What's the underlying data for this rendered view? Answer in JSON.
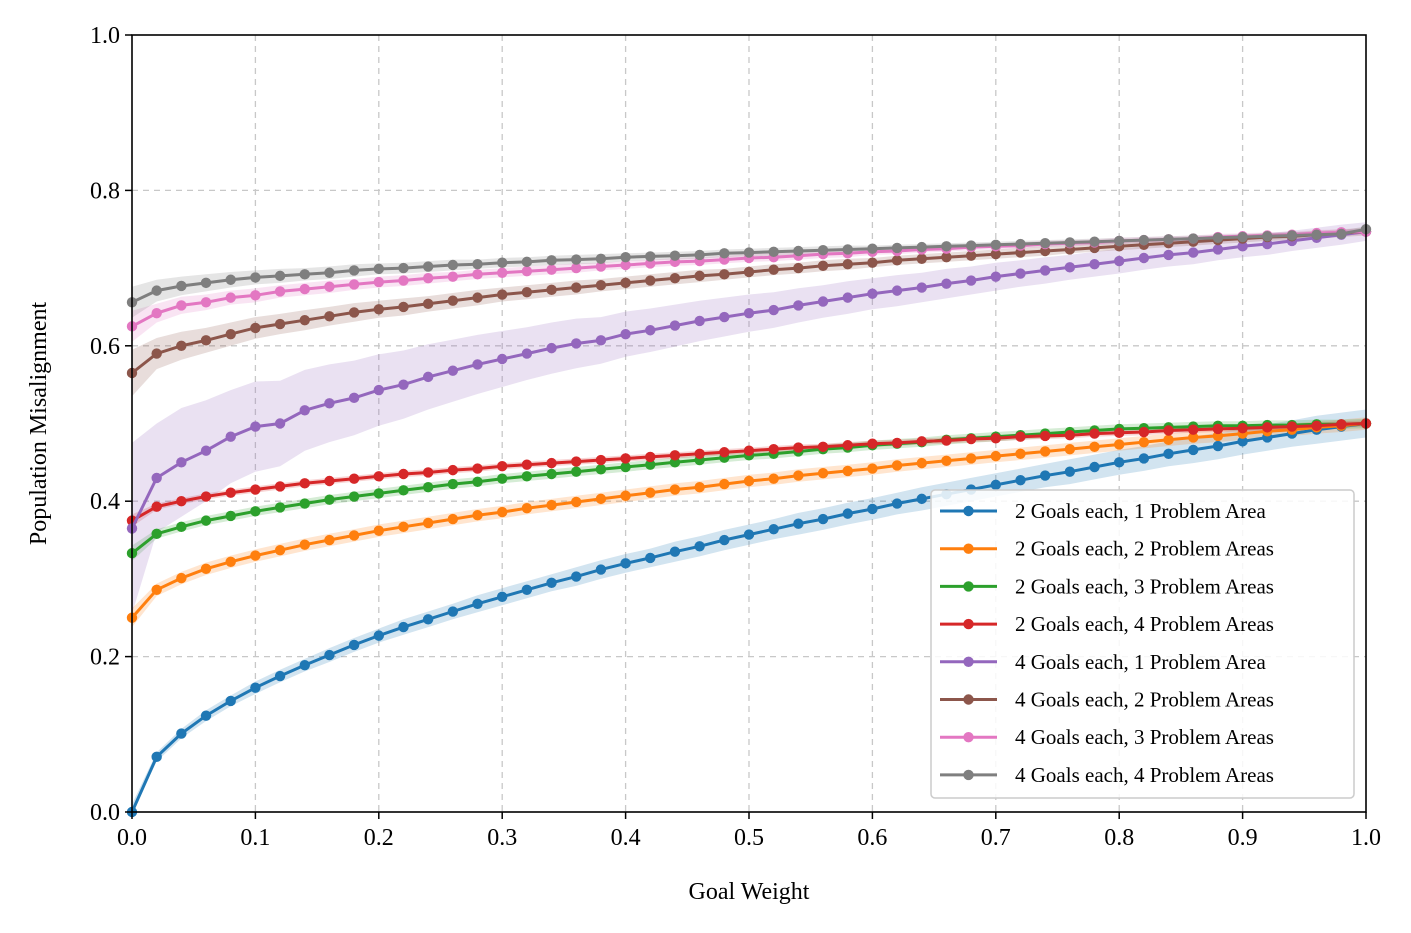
{
  "chart_data": {
    "type": "line",
    "title": "",
    "xlabel": "Goal Weight",
    "ylabel": "Population Misalignment",
    "xlim": [
      0.0,
      1.0
    ],
    "ylim": [
      0.0,
      1.0
    ],
    "xticks": [
      "0.0",
      "0.1",
      "0.2",
      "0.3",
      "0.4",
      "0.5",
      "0.6",
      "0.7",
      "0.8",
      "0.9",
      "1.0"
    ],
    "yticks": [
      "0.0",
      "0.2",
      "0.4",
      "0.6",
      "0.8",
      "1.0"
    ],
    "grid": true,
    "legend_position": "lower-right",
    "x": [
      0.0,
      0.02,
      0.04,
      0.06,
      0.08,
      0.1,
      0.12,
      0.14,
      0.16,
      0.18,
      0.2,
      0.22,
      0.24,
      0.26,
      0.28,
      0.3,
      0.32,
      0.34,
      0.36,
      0.38,
      0.4,
      0.42,
      0.44,
      0.46,
      0.48,
      0.5,
      0.52,
      0.54,
      0.56,
      0.58,
      0.6,
      0.62,
      0.64,
      0.66,
      0.68,
      0.7,
      0.72,
      0.74,
      0.76,
      0.78,
      0.8,
      0.82,
      0.84,
      0.86,
      0.88,
      0.9,
      0.92,
      0.94,
      0.96,
      0.98,
      1.0
    ],
    "series": [
      {
        "name": "2 Goals each, 1 Problem Area",
        "color": "#1f77b4",
        "values": [
          0.0,
          0.071,
          0.101,
          0.124,
          0.143,
          0.16,
          0.175,
          0.189,
          0.202,
          0.215,
          0.227,
          0.238,
          0.248,
          0.258,
          0.268,
          0.277,
          0.286,
          0.295,
          0.303,
          0.312,
          0.32,
          0.327,
          0.335,
          0.342,
          0.35,
          0.357,
          0.364,
          0.371,
          0.377,
          0.384,
          0.39,
          0.397,
          0.403,
          0.409,
          0.415,
          0.421,
          0.427,
          0.433,
          0.438,
          0.444,
          0.45,
          0.455,
          0.461,
          0.466,
          0.471,
          0.477,
          0.482,
          0.487,
          0.492,
          0.496,
          0.5
        ],
        "band": [
          0.01,
          0.006,
          0.006,
          0.007,
          0.007,
          0.008,
          0.008,
          0.008,
          0.009,
          0.009,
          0.009,
          0.01,
          0.01,
          0.01,
          0.011,
          0.011,
          0.011,
          0.011,
          0.012,
          0.012,
          0.012,
          0.012,
          0.013,
          0.013,
          0.013,
          0.013,
          0.013,
          0.014,
          0.014,
          0.014,
          0.014,
          0.014,
          0.015,
          0.015,
          0.015,
          0.015,
          0.015,
          0.015,
          0.016,
          0.016,
          0.016,
          0.016,
          0.016,
          0.017,
          0.017,
          0.017,
          0.017,
          0.017,
          0.018,
          0.018,
          0.018
        ]
      },
      {
        "name": "2 Goals each, 2 Problem Areas",
        "color": "#ff7f0e",
        "values": [
          0.25,
          0.286,
          0.301,
          0.313,
          0.322,
          0.33,
          0.337,
          0.344,
          0.35,
          0.356,
          0.362,
          0.367,
          0.372,
          0.377,
          0.382,
          0.386,
          0.391,
          0.395,
          0.399,
          0.403,
          0.407,
          0.411,
          0.415,
          0.418,
          0.422,
          0.426,
          0.429,
          0.433,
          0.436,
          0.439,
          0.442,
          0.446,
          0.449,
          0.452,
          0.455,
          0.458,
          0.461,
          0.464,
          0.467,
          0.47,
          0.473,
          0.476,
          0.479,
          0.482,
          0.484,
          0.487,
          0.49,
          0.492,
          0.495,
          0.497,
          0.5
        ],
        "band": [
          0.012,
          0.008,
          0.008,
          0.008,
          0.008,
          0.008,
          0.008,
          0.008,
          0.008,
          0.008,
          0.008,
          0.008,
          0.008,
          0.008,
          0.008,
          0.008,
          0.008,
          0.008,
          0.008,
          0.008,
          0.008,
          0.008,
          0.008,
          0.008,
          0.008,
          0.008,
          0.008,
          0.008,
          0.008,
          0.008,
          0.008,
          0.008,
          0.008,
          0.008,
          0.008,
          0.008,
          0.008,
          0.008,
          0.008,
          0.008,
          0.008,
          0.008,
          0.008,
          0.008,
          0.008,
          0.008,
          0.008,
          0.008,
          0.008,
          0.008,
          0.008
        ]
      },
      {
        "name": "2 Goals each, 3 Problem Areas",
        "color": "#2ca02c",
        "values": [
          0.333,
          0.358,
          0.367,
          0.375,
          0.381,
          0.387,
          0.392,
          0.397,
          0.402,
          0.406,
          0.41,
          0.414,
          0.418,
          0.422,
          0.425,
          0.429,
          0.432,
          0.435,
          0.438,
          0.441,
          0.444,
          0.447,
          0.45,
          0.453,
          0.456,
          0.459,
          0.461,
          0.464,
          0.467,
          0.469,
          0.472,
          0.474,
          0.476,
          0.479,
          0.481,
          0.483,
          0.485,
          0.487,
          0.489,
          0.491,
          0.493,
          0.494,
          0.495,
          0.496,
          0.497,
          0.497,
          0.498,
          0.498,
          0.499,
          0.499,
          0.5
        ],
        "band": [
          0.01,
          0.006,
          0.006,
          0.006,
          0.006,
          0.006,
          0.006,
          0.006,
          0.006,
          0.006,
          0.006,
          0.006,
          0.006,
          0.006,
          0.006,
          0.006,
          0.006,
          0.006,
          0.006,
          0.006,
          0.006,
          0.006,
          0.006,
          0.006,
          0.006,
          0.006,
          0.006,
          0.006,
          0.006,
          0.006,
          0.006,
          0.006,
          0.006,
          0.006,
          0.006,
          0.006,
          0.006,
          0.006,
          0.006,
          0.006,
          0.006,
          0.006,
          0.006,
          0.006,
          0.006,
          0.006,
          0.006,
          0.006,
          0.006,
          0.006,
          0.006
        ]
      },
      {
        "name": "2 Goals each, 4 Problem Areas",
        "color": "#d62728",
        "values": [
          0.375,
          0.393,
          0.4,
          0.406,
          0.411,
          0.415,
          0.419,
          0.423,
          0.426,
          0.429,
          0.432,
          0.435,
          0.437,
          0.44,
          0.442,
          0.445,
          0.447,
          0.449,
          0.451,
          0.453,
          0.455,
          0.457,
          0.459,
          0.461,
          0.463,
          0.465,
          0.467,
          0.469,
          0.47,
          0.472,
          0.474,
          0.475,
          0.477,
          0.478,
          0.48,
          0.481,
          0.483,
          0.484,
          0.485,
          0.487,
          0.488,
          0.489,
          0.491,
          0.492,
          0.493,
          0.494,
          0.495,
          0.496,
          0.497,
          0.499,
          0.5
        ],
        "band": [
          0.008,
          0.004,
          0.004,
          0.004,
          0.004,
          0.004,
          0.004,
          0.004,
          0.004,
          0.004,
          0.004,
          0.004,
          0.004,
          0.004,
          0.004,
          0.004,
          0.004,
          0.004,
          0.004,
          0.004,
          0.004,
          0.004,
          0.004,
          0.004,
          0.004,
          0.004,
          0.004,
          0.004,
          0.004,
          0.004,
          0.004,
          0.004,
          0.004,
          0.004,
          0.004,
          0.004,
          0.004,
          0.004,
          0.004,
          0.004,
          0.004,
          0.004,
          0.004,
          0.004,
          0.004,
          0.004,
          0.004,
          0.004,
          0.004,
          0.004,
          0.004
        ]
      },
      {
        "name": "4 Goals each, 1 Problem Area",
        "color": "#9467bd",
        "values": [
          0.365,
          0.43,
          0.45,
          0.465,
          0.483,
          0.496,
          0.5,
          0.517,
          0.526,
          0.533,
          0.543,
          0.55,
          0.56,
          0.568,
          0.576,
          0.583,
          0.59,
          0.597,
          0.603,
          0.607,
          0.615,
          0.62,
          0.626,
          0.632,
          0.637,
          0.642,
          0.646,
          0.652,
          0.657,
          0.662,
          0.667,
          0.671,
          0.675,
          0.68,
          0.684,
          0.689,
          0.693,
          0.697,
          0.701,
          0.705,
          0.709,
          0.713,
          0.717,
          0.72,
          0.724,
          0.728,
          0.731,
          0.735,
          0.739,
          0.743,
          0.747
        ],
        "band": [
          0.11,
          0.07,
          0.07,
          0.065,
          0.06,
          0.058,
          0.055,
          0.052,
          0.05,
          0.048,
          0.046,
          0.044,
          0.042,
          0.04,
          0.038,
          0.036,
          0.034,
          0.033,
          0.032,
          0.03,
          0.029,
          0.028,
          0.027,
          0.026,
          0.025,
          0.024,
          0.023,
          0.022,
          0.021,
          0.021,
          0.02,
          0.02,
          0.019,
          0.019,
          0.018,
          0.018,
          0.017,
          0.017,
          0.016,
          0.016,
          0.016,
          0.015,
          0.015,
          0.015,
          0.014,
          0.014,
          0.014,
          0.013,
          0.013,
          0.013,
          0.012
        ]
      },
      {
        "name": "4 Goals each, 2 Problem Areas",
        "color": "#8c564b",
        "values": [
          0.565,
          0.59,
          0.6,
          0.607,
          0.615,
          0.623,
          0.628,
          0.633,
          0.638,
          0.643,
          0.647,
          0.65,
          0.654,
          0.658,
          0.662,
          0.666,
          0.669,
          0.672,
          0.675,
          0.678,
          0.681,
          0.684,
          0.687,
          0.69,
          0.692,
          0.695,
          0.698,
          0.7,
          0.703,
          0.705,
          0.707,
          0.71,
          0.712,
          0.714,
          0.716,
          0.718,
          0.72,
          0.722,
          0.724,
          0.726,
          0.728,
          0.73,
          0.732,
          0.734,
          0.736,
          0.738,
          0.74,
          0.741,
          0.743,
          0.745,
          0.747
        ],
        "band": [
          0.03,
          0.02,
          0.018,
          0.016,
          0.015,
          0.014,
          0.013,
          0.013,
          0.012,
          0.012,
          0.011,
          0.011,
          0.01,
          0.01,
          0.01,
          0.009,
          0.009,
          0.009,
          0.009,
          0.008,
          0.008,
          0.008,
          0.008,
          0.008,
          0.007,
          0.007,
          0.007,
          0.007,
          0.007,
          0.007,
          0.006,
          0.006,
          0.006,
          0.006,
          0.006,
          0.006,
          0.006,
          0.006,
          0.005,
          0.005,
          0.005,
          0.005,
          0.005,
          0.005,
          0.005,
          0.005,
          0.005,
          0.005,
          0.005,
          0.005,
          0.005
        ]
      },
      {
        "name": "4 Goals each, 3 Problem Areas",
        "color": "#e377c2",
        "values": [
          0.625,
          0.642,
          0.652,
          0.656,
          0.662,
          0.665,
          0.67,
          0.673,
          0.676,
          0.679,
          0.682,
          0.684,
          0.687,
          0.689,
          0.692,
          0.694,
          0.696,
          0.698,
          0.7,
          0.702,
          0.704,
          0.706,
          0.708,
          0.709,
          0.711,
          0.713,
          0.714,
          0.716,
          0.718,
          0.719,
          0.721,
          0.722,
          0.724,
          0.725,
          0.727,
          0.728,
          0.729,
          0.731,
          0.732,
          0.733,
          0.735,
          0.736,
          0.737,
          0.738,
          0.74,
          0.741,
          0.742,
          0.743,
          0.745,
          0.746,
          0.747
        ],
        "band": [
          0.02,
          0.012,
          0.011,
          0.01,
          0.009,
          0.009,
          0.008,
          0.008,
          0.008,
          0.007,
          0.007,
          0.007,
          0.007,
          0.006,
          0.006,
          0.006,
          0.006,
          0.006,
          0.006,
          0.005,
          0.005,
          0.005,
          0.005,
          0.005,
          0.005,
          0.005,
          0.005,
          0.005,
          0.005,
          0.005,
          0.004,
          0.004,
          0.004,
          0.004,
          0.004,
          0.004,
          0.004,
          0.004,
          0.004,
          0.004,
          0.004,
          0.004,
          0.004,
          0.004,
          0.004,
          0.004,
          0.004,
          0.004,
          0.004,
          0.004,
          0.004
        ]
      },
      {
        "name": "4 Goals each, 4 Problem Areas",
        "color": "#7f7f7f",
        "values": [
          0.656,
          0.671,
          0.677,
          0.681,
          0.685,
          0.688,
          0.69,
          0.692,
          0.694,
          0.697,
          0.699,
          0.7,
          0.702,
          0.704,
          0.705,
          0.707,
          0.708,
          0.71,
          0.711,
          0.712,
          0.714,
          0.715,
          0.716,
          0.717,
          0.719,
          0.72,
          0.721,
          0.722,
          0.723,
          0.724,
          0.725,
          0.726,
          0.727,
          0.728,
          0.729,
          0.73,
          0.731,
          0.732,
          0.733,
          0.734,
          0.735,
          0.736,
          0.737,
          0.738,
          0.739,
          0.74,
          0.741,
          0.742,
          0.743,
          0.744,
          0.75
        ],
        "band": [
          0.02,
          0.014,
          0.012,
          0.011,
          0.01,
          0.009,
          0.009,
          0.008,
          0.008,
          0.008,
          0.007,
          0.007,
          0.007,
          0.007,
          0.006,
          0.006,
          0.006,
          0.006,
          0.006,
          0.006,
          0.005,
          0.005,
          0.005,
          0.005,
          0.005,
          0.005,
          0.005,
          0.005,
          0.005,
          0.005,
          0.004,
          0.004,
          0.004,
          0.004,
          0.004,
          0.004,
          0.004,
          0.004,
          0.004,
          0.004,
          0.004,
          0.004,
          0.004,
          0.004,
          0.004,
          0.004,
          0.004,
          0.004,
          0.004,
          0.004,
          0.004
        ]
      }
    ]
  }
}
